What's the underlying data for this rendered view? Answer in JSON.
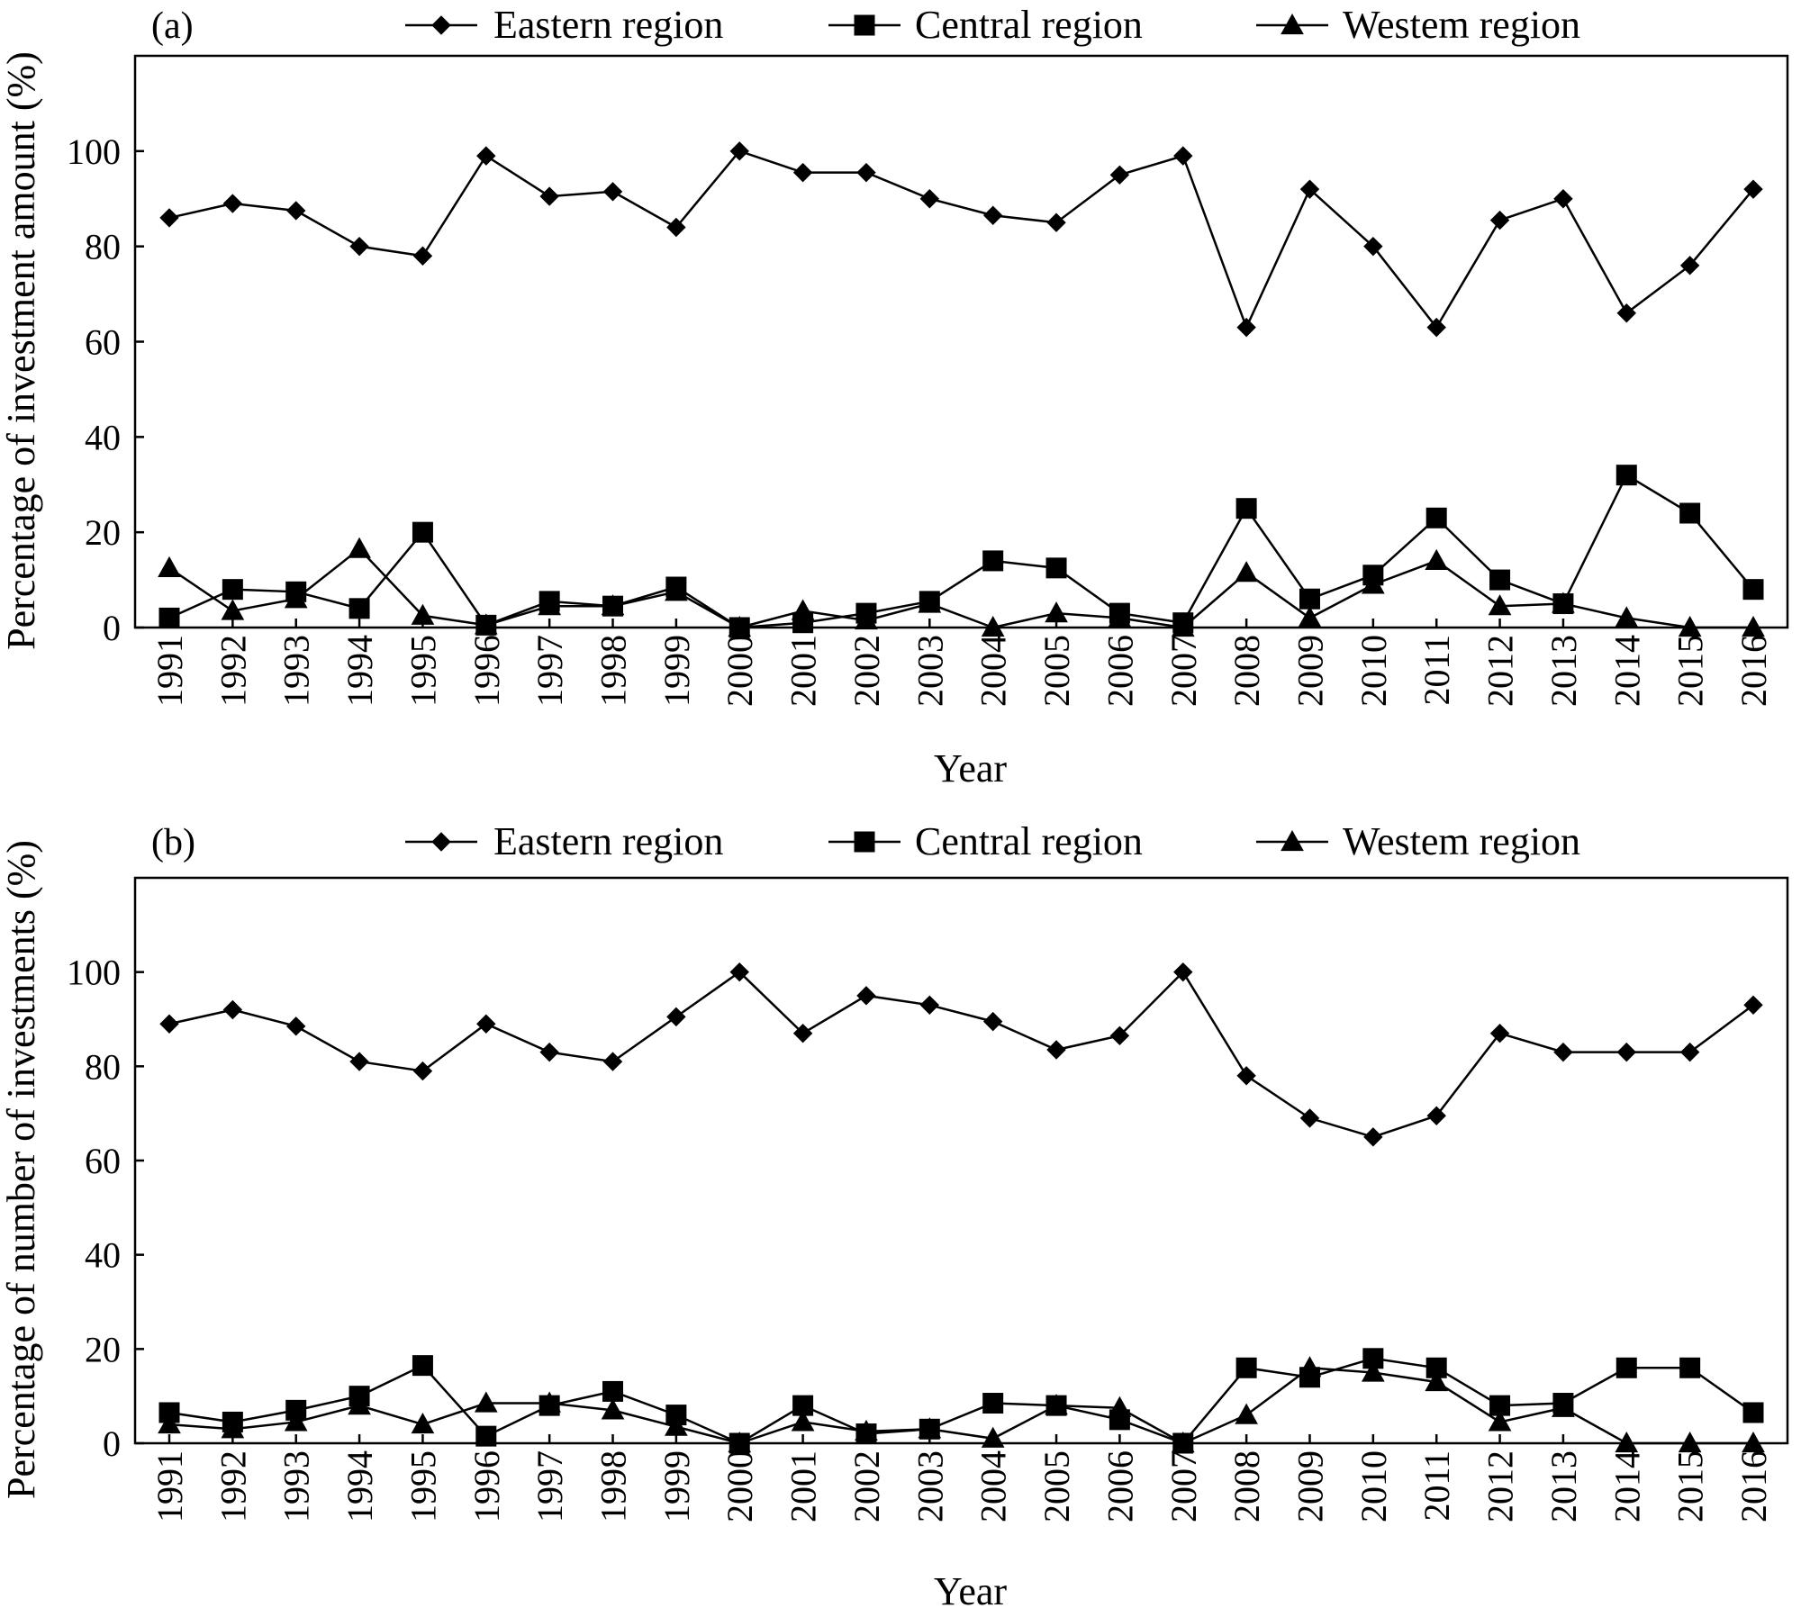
{
  "legend": {
    "eastern": "Eastern region",
    "central": "Central region",
    "western": "Westem region"
  },
  "chart_data": [
    {
      "type": "line",
      "panel_label": "(a)",
      "xlabel": "Year",
      "ylabel": "Percentage of investment amount (%)",
      "ylim": [
        0,
        120
      ],
      "yticks": [
        0,
        20,
        40,
        60,
        80,
        100
      ],
      "grid": false,
      "legend_position": "top",
      "x": [
        "1991",
        "1992",
        "1993",
        "1994",
        "1995",
        "1996",
        "1997",
        "1998",
        "1999",
        "2000",
        "2001",
        "2002",
        "2003",
        "2004",
        "2005",
        "2006",
        "2007",
        "2008",
        "2009",
        "2010",
        "2011",
        "2012",
        "2013",
        "2014",
        "2015",
        "2016"
      ],
      "series": [
        {
          "name": "Eastern region",
          "marker": "diamond",
          "values": [
            86,
            89,
            87.5,
            80,
            78,
            99,
            90.5,
            91.5,
            84,
            100,
            95.5,
            95.5,
            90,
            86.5,
            85,
            95,
            99,
            63,
            92,
            80,
            63,
            85.5,
            90,
            66,
            76,
            92
          ]
        },
        {
          "name": "Central region",
          "marker": "square",
          "values": [
            2,
            8,
            7.5,
            4,
            20,
            0.5,
            5.5,
            4.5,
            8.5,
            0,
            1,
            3,
            5.5,
            14,
            12.5,
            3,
            1,
            25,
            6,
            11,
            23,
            10,
            5,
            32,
            24,
            8
          ]
        },
        {
          "name": "Westem region",
          "marker": "triangle",
          "values": [
            12.5,
            3.5,
            6,
            16.5,
            2.5,
            0.5,
            4.5,
            4.5,
            7.5,
            0,
            3.5,
            1.5,
            5,
            0,
            3,
            2,
            0,
            11.5,
            2,
            9,
            14,
            4.5,
            5,
            2,
            0,
            0
          ]
        }
      ]
    },
    {
      "type": "line",
      "panel_label": "(b)",
      "xlabel": "Year",
      "ylabel": "Percentage of number of investments (%)",
      "ylim": [
        0,
        120
      ],
      "yticks": [
        0,
        20,
        40,
        60,
        80,
        100
      ],
      "grid": false,
      "legend_position": "top",
      "x": [
        "1991",
        "1992",
        "1993",
        "1994",
        "1995",
        "1996",
        "1997",
        "1998",
        "1999",
        "2000",
        "2001",
        "2002",
        "2003",
        "2004",
        "2005",
        "2006",
        "2007",
        "2008",
        "2009",
        "2010",
        "2011",
        "2012",
        "2013",
        "2014",
        "2015",
        "2016"
      ],
      "series": [
        {
          "name": "Eastern region",
          "marker": "diamond",
          "values": [
            89,
            92,
            88.5,
            81,
            79,
            89,
            83,
            81,
            90.5,
            100,
            87,
            95,
            93,
            89.5,
            83.5,
            86.5,
            100,
            78,
            69,
            65,
            69.5,
            87,
            83,
            83,
            83,
            93
          ]
        },
        {
          "name": "Central region",
          "marker": "square",
          "values": [
            6.5,
            4.5,
            7,
            10,
            16.5,
            1.5,
            8,
            11,
            6,
            0,
            8,
            2,
            3,
            8.5,
            8,
            5,
            0,
            16,
            14,
            18,
            16,
            8,
            8.5,
            16,
            16,
            6.5
          ]
        },
        {
          "name": "Westem region",
          "marker": "triangle",
          "values": [
            4,
            3,
            4.5,
            8,
            4,
            8.5,
            8.5,
            7,
            3.5,
            0,
            4.5,
            2.5,
            3,
            1,
            8,
            7.5,
            0,
            6,
            16,
            15,
            13,
            4.5,
            7.5,
            0,
            0,
            0
          ]
        }
      ]
    }
  ]
}
